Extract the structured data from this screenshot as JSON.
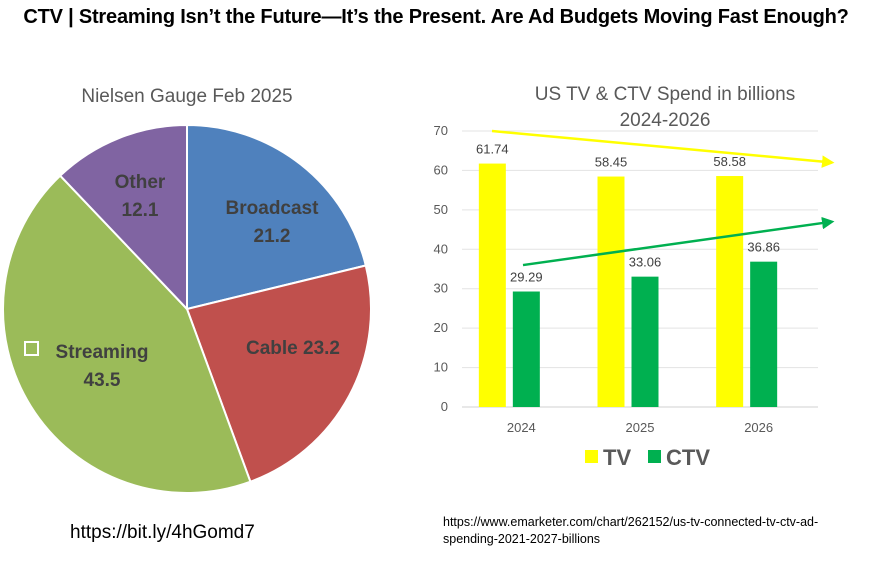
{
  "header": {
    "title": "CTV | Streaming Isn’t the Future—It’s the Present. Are Ad Budgets Moving Fast Enough?"
  },
  "links": {
    "pie_source": "https://bit.ly/4hGomd7",
    "bar_source": "https://www.emarketer.com/chart/262152/us-tv-connected-tv-ctv-ad-spending-2021-2027-billions"
  },
  "chart_data": [
    {
      "type": "pie",
      "title": "Nielsen Gauge Feb 2025",
      "slices": [
        {
          "label": "Broadcast",
          "value": 21.2,
          "color": "#4F81BD",
          "display": [
            "Broadcast",
            "21.2"
          ]
        },
        {
          "label": "Cable",
          "value": 23.2,
          "color": "#C0504D",
          "display": [
            "Cable 23.2"
          ]
        },
        {
          "label": "Streaming",
          "value": 43.5,
          "color": "#9BBB59",
          "display": [
            "Streaming",
            "43.5"
          ]
        },
        {
          "label": "Other",
          "value": 12.1,
          "color": "#8064A2",
          "display": [
            "Other",
            "12.1"
          ]
        }
      ],
      "start": "12 o'clock, clockwise"
    },
    {
      "type": "bar",
      "title": "US TV & CTV Spend in billions",
      "subtitle": "2024-2026",
      "categories": [
        "2024",
        "2025",
        "2026"
      ],
      "series": [
        {
          "name": "TV",
          "values": [
            61.74,
            58.45,
            58.58
          ],
          "color": "#FFFF00",
          "labels": [
            "61.74",
            "58.45",
            "58.58"
          ]
        },
        {
          "name": "CTV",
          "values": [
            29.29,
            33.06,
            36.86
          ],
          "color": "#00B050",
          "labels": [
            "29.29",
            "33.06",
            "36.86"
          ]
        }
      ],
      "ylim": [
        0,
        70
      ],
      "yticks": [
        0,
        10,
        20,
        30,
        40,
        50,
        60,
        70
      ],
      "grid": true,
      "legend": "bottom",
      "annotations": [
        {
          "type": "trend-arrow",
          "series": "TV",
          "direction": "down",
          "color": "#FFFF00",
          "from_value": 70,
          "to_value": 62
        },
        {
          "type": "trend-arrow",
          "series": "CTV",
          "direction": "up",
          "color": "#00B050",
          "from_value": 36,
          "to_value": 47
        }
      ]
    }
  ]
}
